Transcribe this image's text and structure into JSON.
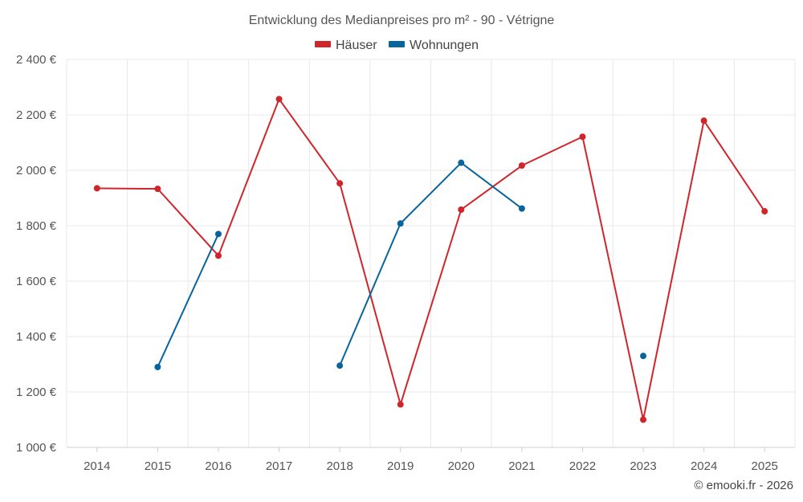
{
  "chart_data": {
    "type": "line",
    "title": "Entwicklung des Medianpreises pro m² - 90 - Vétrigne",
    "x": [
      "2014",
      "2015",
      "2016",
      "2017",
      "2018",
      "2019",
      "2020",
      "2021",
      "2022",
      "2023",
      "2024",
      "2025"
    ],
    "y_ticks": [
      "1 000 €",
      "1 200 €",
      "1 400 €",
      "1 600 €",
      "1 800 €",
      "2 000 €",
      "2 200 €",
      "2 400 €"
    ],
    "ylim": [
      1000,
      2400
    ],
    "grid": true,
    "legend_position": "top-center",
    "series": [
      {
        "name": "Häuser",
        "color": "#d0262b",
        "values": [
          1935,
          1933,
          1692,
          2257,
          1953,
          1155,
          1858,
          2017,
          2121,
          1100,
          2179,
          1852
        ]
      },
      {
        "name": "Wohnungen",
        "color": "#08649c",
        "values": [
          null,
          1290,
          1770,
          null,
          1295,
          1808,
          2027,
          1862,
          null,
          1330,
          null,
          null
        ]
      }
    ]
  },
  "credit": "© emooki.fr - 2026"
}
